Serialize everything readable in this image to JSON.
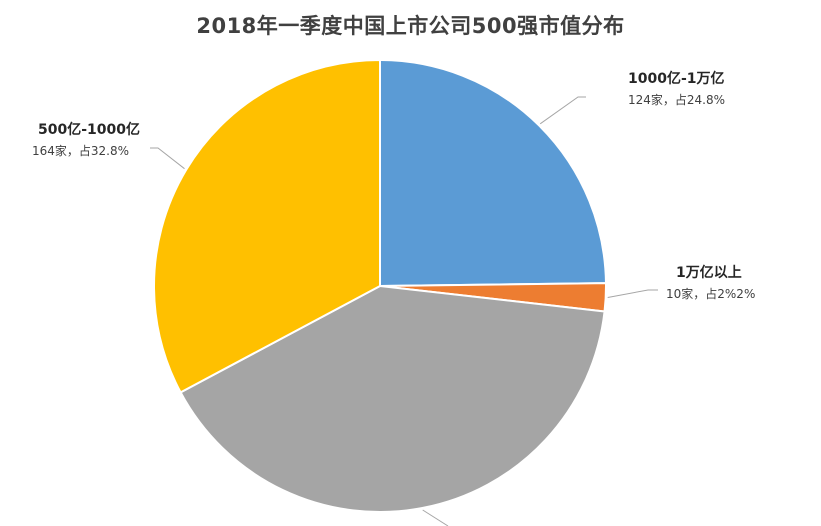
{
  "chart_data": {
    "type": "pie",
    "title": "2018年一季度中国上市公司500强市值分布",
    "slices": [
      {
        "name": "1000亿-1万亿",
        "detail": "124家，占24.8%",
        "value": 124,
        "color": "#5b9bd5"
      },
      {
        "name": "1万亿以上",
        "detail": "10家，占2%2%",
        "value": 10,
        "color": "#ed7d31"
      },
      {
        "name": "",
        "detail": "",
        "value": 202,
        "color": "#a5a5a5"
      },
      {
        "name": "500亿-1000亿",
        "detail": "164家，占32.8%",
        "value": 164,
        "color": "#ffc000"
      }
    ],
    "start_angle_deg": 0,
    "direction": "clockwise"
  }
}
